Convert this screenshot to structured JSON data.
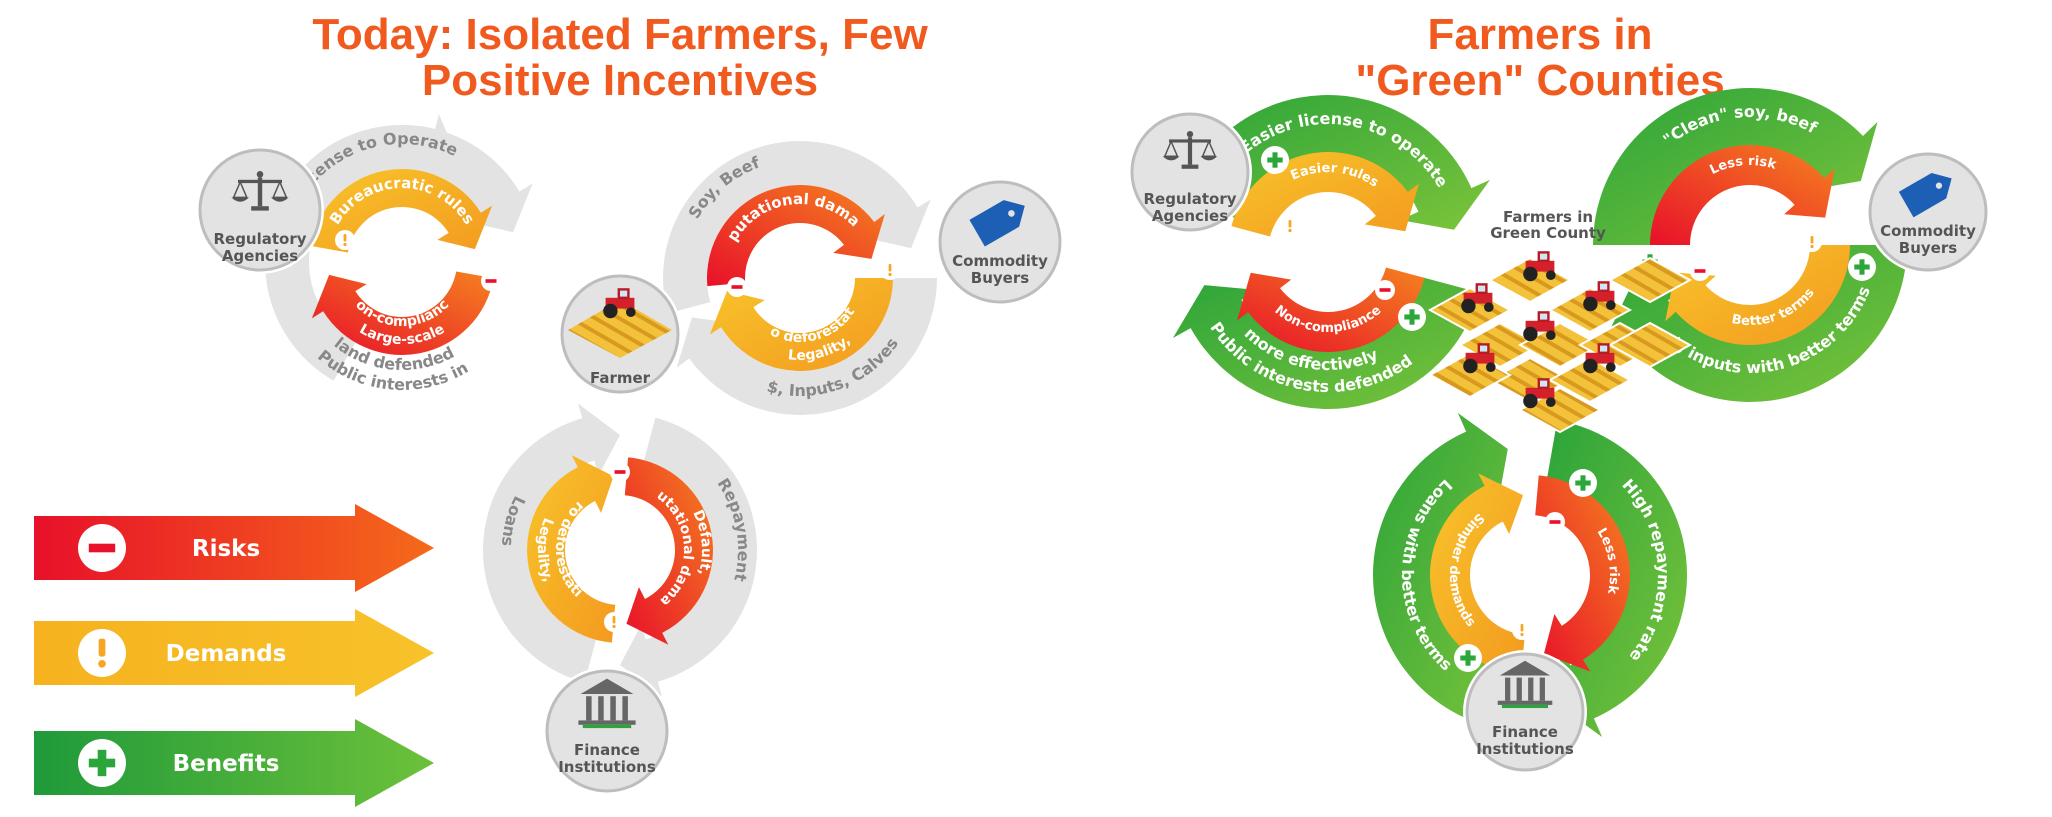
{
  "left_title": {
    "line1": "Today:  Isolated Farmers, Few",
    "line2": "Positive Incentives"
  },
  "right_title": {
    "line1": "Farmers in",
    "line2": "\"Green\" Counties"
  },
  "legend": [
    {
      "label": "Risks",
      "icon": "minus-icon",
      "color": "#e8102a"
    },
    {
      "label": "Demands",
      "icon": "exclamation-icon",
      "color": "#f6a623"
    },
    {
      "label": "Benefits",
      "icon": "plus-icon",
      "color": "#2aa63a"
    }
  ],
  "left": {
    "regulatory": {
      "line1": "Regulatory",
      "line2": "Agencies",
      "icon": "scales-icon"
    },
    "farmer": {
      "label": "Farmer",
      "icon": "tractor-icon"
    },
    "commodity": {
      "line1": "Commodity",
      "line2": "Buyers",
      "icon": "price-tag-icon"
    },
    "finance": {
      "line1": "Finance",
      "line2": "Institutions",
      "icon": "bank-icon"
    },
    "gray_labels": {
      "license": "License to Operate",
      "public1": "Public interests in",
      "public2": "land defended",
      "soy": "Soy, Beef",
      "inputs": "$, Inputs, Calves",
      "loans": "Loans",
      "repayment": "Repayment"
    },
    "inner_labels": {
      "bureaucratic": "Bureaucratic rules",
      "largescale1": "Large-scale",
      "largescale2": "non-compliance",
      "reputational": "Reputational damage",
      "legality_c1": "Legality,",
      "legality_c2": "zero deforestation",
      "legality_f1": "Legality,",
      "legality_f2": "zero deforestation",
      "default1": "Default,",
      "default2": "reputational damage"
    }
  },
  "right": {
    "regulatory": {
      "line1": "Regulatory",
      "line2": "Agencies",
      "icon": "scales-icon"
    },
    "county": {
      "line1": "Farmers in",
      "line2": "Green County",
      "icon": "tractor-icon"
    },
    "commodity": {
      "line1": "Commodity",
      "line2": "Buyers",
      "icon": "price-tag-icon"
    },
    "finance": {
      "line1": "Finance",
      "line2": "Institutions",
      "icon": "bank-icon"
    },
    "outer_labels": {
      "easier_license": "Easier license to operate",
      "public1": "Public interests defended",
      "public2": "more effectively",
      "clean": "\"Clean\" soy, beef",
      "inputs": "$, inputs with better terms",
      "loans": "Loans with better terms",
      "repayment": "High repayment rate"
    },
    "inner_labels": {
      "easier_rules": "Easier rules",
      "noncompliance": "Non-compliance",
      "less_risk_c": "Less risk",
      "better_terms": "Better terms",
      "simpler": "Simpler demands",
      "less_risk_f": "Less risk"
    }
  }
}
